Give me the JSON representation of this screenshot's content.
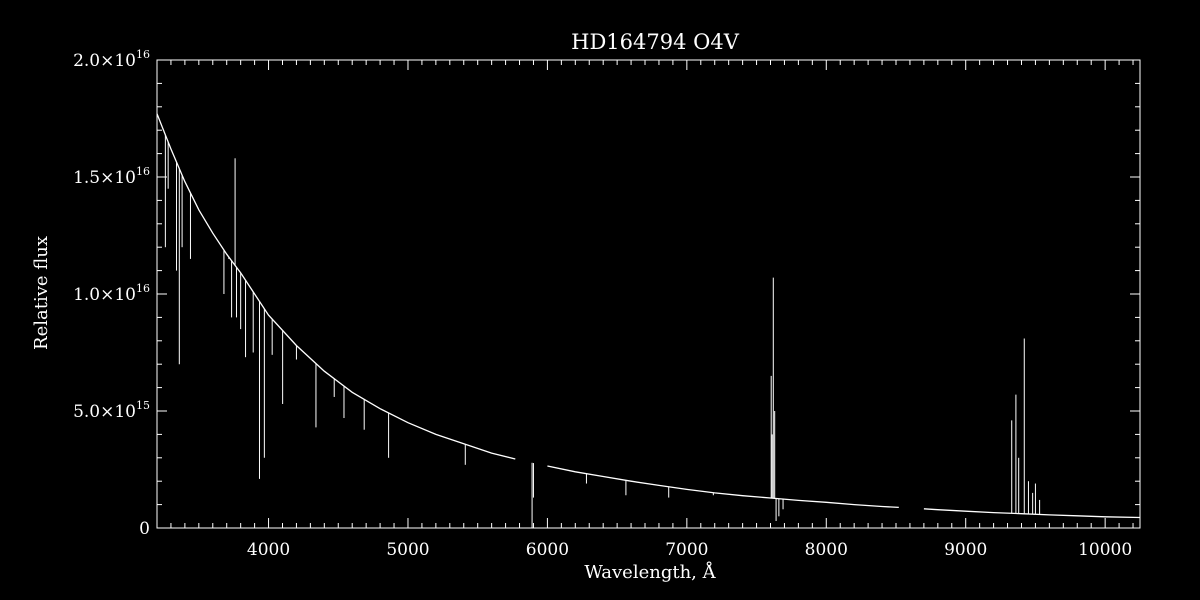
{
  "chart_data": {
    "type": "line",
    "title": "HD164794   O4V",
    "xlabel": "Wavelength, Å",
    "ylabel": "Relative flux",
    "xlim": [
      3200,
      10250
    ],
    "ylim": [
      0,
      2e+16
    ],
    "x_ticks": [
      {
        "value": 4000,
        "label": "4000"
      },
      {
        "value": 5000,
        "label": "5000"
      },
      {
        "value": 6000,
        "label": "6000"
      },
      {
        "value": 7000,
        "label": "7000"
      },
      {
        "value": 8000,
        "label": "8000"
      },
      {
        "value": 9000,
        "label": "9000"
      },
      {
        "value": 10000,
        "label": "10000"
      }
    ],
    "y_ticks": [
      {
        "value": 0,
        "mantissa": "0",
        "exponent": ""
      },
      {
        "value": 5000000000000000.0,
        "mantissa": "5.0×10",
        "exponent": "15"
      },
      {
        "value": 1e+16,
        "mantissa": "1.0×10",
        "exponent": "16"
      },
      {
        "value": 1.5e+16,
        "mantissa": "1.5×10",
        "exponent": "16"
      },
      {
        "value": 2e+16,
        "mantissa": "2.0×10",
        "exponent": "16"
      }
    ],
    "grid": false,
    "colors": {
      "background": "#000000",
      "foreground": "#ffffff"
    },
    "series": [
      {
        "continuum": [
          [
            3200,
            1.77e+16
          ],
          [
            3300,
            1.62e+16
          ],
          [
            3400,
            1.48e+16
          ],
          [
            3500,
            1.36e+16
          ],
          [
            3600,
            1.26e+16
          ],
          [
            3700,
            1.17e+16
          ],
          [
            3800,
            1.09e+16
          ],
          [
            3900,
            1e+16
          ],
          [
            4000,
            9100000000000000.0
          ],
          [
            4200,
            7800000000000000.0
          ],
          [
            4400,
            6700000000000000.0
          ],
          [
            4600,
            5800000000000000.0
          ],
          [
            4800,
            5100000000000000.0
          ],
          [
            5000,
            4500000000000000.0
          ],
          [
            5200,
            4000000000000000.0
          ],
          [
            5400,
            3600000000000000.0
          ],
          [
            5600,
            3200000000000000.0
          ],
          [
            5770,
            2950000000000000.0
          ],
          [
            5800,
            2900000000000000.0
          ],
          [
            6000,
            2650000000000000.0
          ],
          [
            6200,
            2400000000000000.0
          ],
          [
            6400,
            2200000000000000.0
          ],
          [
            6600,
            2000000000000000.0
          ],
          [
            6800,
            1820000000000000.0
          ],
          [
            7000,
            1650000000000000.0
          ],
          [
            7200,
            1500000000000000.0
          ],
          [
            7400,
            1380000000000000.0
          ],
          [
            7600,
            1280000000000000.0
          ],
          [
            7800,
            1180000000000000.0
          ],
          [
            8000,
            1100000000000000.0
          ],
          [
            8200,
            1000000000000000.0
          ],
          [
            8400,
            920000000000000.0
          ],
          [
            8520,
            880000000000000.0
          ],
          [
            8700,
            820000000000000.0
          ],
          [
            8800,
            780000000000000.0
          ],
          [
            9000,
            720000000000000.0
          ],
          [
            9200,
            660000000000000.0
          ],
          [
            9400,
            610000000000000.0
          ],
          [
            9600,
            560000000000000.0
          ],
          [
            9800,
            520000000000000.0
          ],
          [
            10000,
            480000000000000.0
          ],
          [
            10250,
            450000000000000.0
          ]
        ],
        "gaps": [
          [
            5770,
            5810
          ],
          [
            8520,
            8700
          ]
        ],
        "features": [
          {
            "x": 3260,
            "y": 1.2e+16
          },
          {
            "x": 3280,
            "y": 1.45e+16
          },
          {
            "x": 3340,
            "y": 1.1e+16
          },
          {
            "x": 3360,
            "y": 7000000000000000.0
          },
          {
            "x": 3380,
            "y": 1.2e+16
          },
          {
            "x": 3440,
            "y": 1.15e+16
          },
          {
            "x": 3680,
            "y": 1e+16
          },
          {
            "x": 3715,
            "y": 1.15e+16
          },
          {
            "x": 3735,
            "y": 9000000000000000.0
          },
          {
            "x": 3760,
            "y": 1.58e+16
          },
          {
            "x": 3770,
            "y": 9000000000000000.0
          },
          {
            "x": 3800,
            "y": 8500000000000000.0
          },
          {
            "x": 3835,
            "y": 7300000000000000.0
          },
          {
            "x": 3890,
            "y": 7500000000000000.0
          },
          {
            "x": 3935,
            "y": 2100000000000000.0
          },
          {
            "x": 3970,
            "y": 3000000000000000.0
          },
          {
            "x": 4026,
            "y": 7400000000000000.0
          },
          {
            "x": 4101,
            "y": 5300000000000000.0
          },
          {
            "x": 4200,
            "y": 7200000000000000.0
          },
          {
            "x": 4340,
            "y": 4300000000000000.0
          },
          {
            "x": 4471,
            "y": 5600000000000000.0
          },
          {
            "x": 4541,
            "y": 4700000000000000.0
          },
          {
            "x": 4686,
            "y": 4200000000000000.0
          },
          {
            "x": 4861,
            "y": 3000000000000000.0
          },
          {
            "x": 5411,
            "y": 2700000000000000.0
          },
          {
            "x": 5890,
            "y": 0.0
          },
          {
            "x": 5900,
            "y": 1300000000000000.0
          },
          {
            "x": 6280,
            "y": 1900000000000000.0
          },
          {
            "x": 6563,
            "y": 1400000000000000.0
          },
          {
            "x": 6870,
            "y": 1300000000000000.0
          },
          {
            "x": 7190,
            "y": 1400000000000000.0
          },
          {
            "x": 7605,
            "y": 6500000000000000.0
          },
          {
            "x": 7612,
            "y": 4000000000000000.0
          },
          {
            "x": 7620,
            "y": 1.07e+16
          },
          {
            "x": 7630,
            "y": 5000000000000000.0
          },
          {
            "x": 7640,
            "y": 300000000000000.0
          },
          {
            "x": 7660,
            "y": 500000000000000.0
          },
          {
            "x": 7690,
            "y": 800000000000000.0
          },
          {
            "x": 9330,
            "y": 4600000000000000.0
          },
          {
            "x": 9360,
            "y": 5700000000000000.0
          },
          {
            "x": 9380,
            "y": 3000000000000000.0
          },
          {
            "x": 9420,
            "y": 8100000000000000.0
          },
          {
            "x": 9450,
            "y": 2000000000000000.0
          },
          {
            "x": 9480,
            "y": 1500000000000000.0
          },
          {
            "x": 9500,
            "y": 1900000000000000.0
          },
          {
            "x": 9530,
            "y": 1200000000000000.0
          }
        ]
      }
    ]
  }
}
